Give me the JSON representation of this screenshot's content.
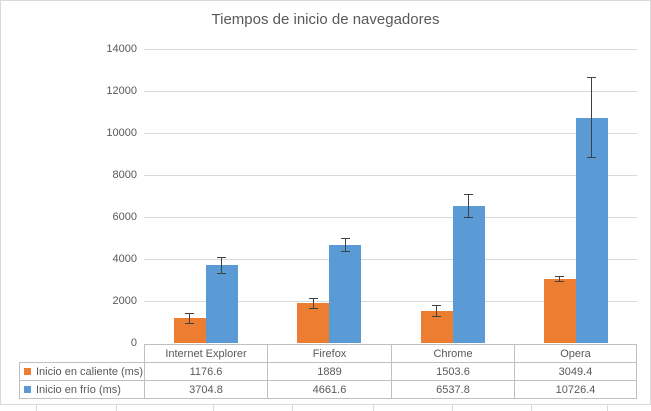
{
  "chart_data": {
    "type": "bar",
    "title": "Tiempos de inicio de navegadores",
    "categories": [
      "Internet Explorer",
      "Firefox",
      "Chrome",
      "Opera"
    ],
    "series": [
      {
        "name": "Inicio en caliente (ms)",
        "color": "#ED7D31",
        "values": [
          1176.6,
          1889,
          1503.6,
          3049.4
        ],
        "error_bars_plus_minus": [
          230,
          240,
          260,
          120
        ]
      },
      {
        "name": "Inicio en frío (ms)",
        "color": "#5B9BD5",
        "values": [
          3704.8,
          4661.6,
          6537.8,
          10726.4
        ],
        "error_bars_plus_minus": [
          380,
          310,
          550,
          1900
        ]
      }
    ],
    "ylim": [
      0,
      14000
    ],
    "ytick_interval": 2000,
    "ytick_labels": [
      "0",
      "2000",
      "4000",
      "6000",
      "8000",
      "10000",
      "12000",
      "14000"
    ],
    "grid": true,
    "error_bars": true,
    "legend_position": "data-table-keys",
    "data_table_shown": true
  },
  "colors": {
    "series_caliente": "#ED7D31",
    "series_frio": "#5B9BD5",
    "gridline": "#D9D9D9",
    "table_border": "#BFBFBF",
    "frame_border": "#D9D9D9",
    "text": "#595959",
    "error_bar": "#404040",
    "background": "#FFFFFF"
  }
}
